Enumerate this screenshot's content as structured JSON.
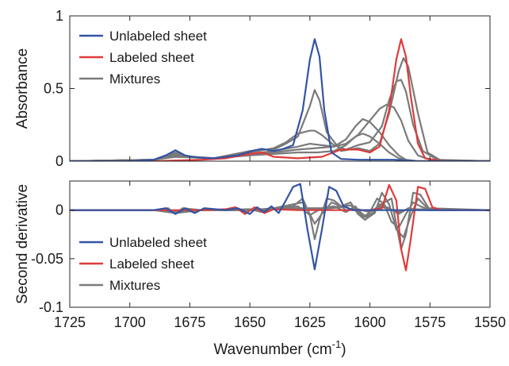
{
  "chart_data": [
    {
      "type": "line",
      "id": "top-panel",
      "xlabel": "",
      "ylabel": "Absorbance",
      "xlim": [
        1725,
        1550
      ],
      "ylim": [
        0,
        1
      ],
      "x_reversed": true,
      "xticks": [
        1725,
        1700,
        1675,
        1650,
        1625,
        1600,
        1575,
        1550
      ],
      "yticks": [
        0,
        0.5,
        1
      ],
      "ytick_labels": [
        "0",
        "0.5",
        "1"
      ],
      "legend": {
        "placement": "top-left",
        "entries": [
          {
            "label": "Unlabeled sheet",
            "color": "#3354a4"
          },
          {
            "label": "Labeled sheet",
            "color": "#e03a3a"
          },
          {
            "label": "Mixtures",
            "color": "#7a7a7a"
          }
        ]
      },
      "series": [
        {
          "name": "Unlabeled sheet",
          "color": "#3354a4",
          "x": [
            1725,
            1700,
            1690,
            1685,
            1681,
            1677,
            1672,
            1665,
            1655,
            1648,
            1645,
            1640,
            1636,
            1632,
            1628,
            1625,
            1623,
            1621,
            1619,
            1616,
            1612,
            1605,
            1598,
            1590,
            1580,
            1570,
            1550
          ],
          "y": [
            0,
            0,
            0.01,
            0.04,
            0.075,
            0.04,
            0.025,
            0.02,
            0.04,
            0.075,
            0.085,
            0.07,
            0.085,
            0.11,
            0.35,
            0.7,
            0.84,
            0.72,
            0.35,
            0.06,
            0.015,
            0.01,
            0.01,
            0.01,
            0,
            0,
            0
          ]
        },
        {
          "name": "Labeled sheet",
          "color": "#e03a3a",
          "x": [
            1725,
            1700,
            1690,
            1680,
            1670,
            1660,
            1650,
            1645,
            1640,
            1630,
            1620,
            1612,
            1605,
            1600,
            1596,
            1592,
            1589,
            1587,
            1585,
            1583,
            1580,
            1577,
            1570,
            1550
          ],
          "y": [
            0,
            0,
            0,
            0.005,
            0.01,
            0.02,
            0.05,
            0.06,
            0.03,
            0.02,
            0.03,
            0.08,
            0.08,
            0.06,
            0.1,
            0.35,
            0.7,
            0.84,
            0.72,
            0.45,
            0.12,
            0.02,
            0,
            0
          ]
        },
        {
          "name": "",
          "color": "#7a7a7a",
          "x": [
            1725,
            1690,
            1681,
            1675,
            1665,
            1650,
            1645,
            1640,
            1635,
            1630,
            1625,
            1623,
            1621,
            1618,
            1612,
            1605,
            1600,
            1596,
            1592,
            1588,
            1586,
            1584,
            1580,
            1576,
            1570,
            1550
          ],
          "y": [
            0,
            0.01,
            0.06,
            0.03,
            0.02,
            0.07,
            0.08,
            0.08,
            0.12,
            0.17,
            0.38,
            0.49,
            0.42,
            0.2,
            0.07,
            0.09,
            0.07,
            0.12,
            0.33,
            0.62,
            0.71,
            0.65,
            0.33,
            0.06,
            0,
            0
          ]
        },
        {
          "name": "",
          "color": "#7a7a7a",
          "x": [
            1725,
            1690,
            1681,
            1675,
            1665,
            1650,
            1640,
            1635,
            1630,
            1625,
            1623,
            1620,
            1615,
            1610,
            1605,
            1600,
            1595,
            1592,
            1589,
            1587,
            1585,
            1582,
            1578,
            1572,
            1550
          ],
          "y": [
            0,
            0.01,
            0.05,
            0.03,
            0.02,
            0.06,
            0.09,
            0.13,
            0.19,
            0.21,
            0.21,
            0.18,
            0.11,
            0.08,
            0.11,
            0.13,
            0.24,
            0.42,
            0.55,
            0.56,
            0.48,
            0.25,
            0.07,
            0.01,
            0
          ]
        },
        {
          "name": "",
          "color": "#7a7a7a",
          "x": [
            1725,
            1690,
            1681,
            1665,
            1650,
            1640,
            1630,
            1625,
            1620,
            1615,
            1610,
            1605,
            1600,
            1596,
            1593,
            1590,
            1587,
            1584,
            1580,
            1575,
            1550
          ],
          "y": [
            0,
            0.01,
            0.04,
            0.02,
            0.05,
            0.07,
            0.1,
            0.12,
            0.11,
            0.1,
            0.12,
            0.18,
            0.28,
            0.36,
            0.39,
            0.37,
            0.28,
            0.14,
            0.04,
            0.01,
            0
          ]
        },
        {
          "name": "",
          "color": "#7a7a7a",
          "x": [
            1725,
            1690,
            1681,
            1665,
            1650,
            1640,
            1630,
            1622,
            1615,
            1610,
            1606,
            1603,
            1600,
            1596,
            1592,
            1588,
            1585,
            1580,
            1550
          ],
          "y": [
            0,
            0.01,
            0.03,
            0.02,
            0.04,
            0.06,
            0.08,
            0.09,
            0.1,
            0.15,
            0.24,
            0.29,
            0.27,
            0.2,
            0.11,
            0.04,
            0.01,
            0,
            0
          ]
        },
        {
          "name": "",
          "color": "#7a7a7a",
          "x": [
            1725,
            1690,
            1681,
            1665,
            1650,
            1640,
            1630,
            1622,
            1615,
            1610,
            1606,
            1603,
            1600,
            1596,
            1592,
            1588,
            1583,
            1550
          ],
          "y": [
            0,
            0.01,
            0.03,
            0.02,
            0.04,
            0.05,
            0.06,
            0.06,
            0.07,
            0.11,
            0.17,
            0.19,
            0.17,
            0.12,
            0.06,
            0.02,
            0,
            0
          ]
        }
      ]
    },
    {
      "type": "line",
      "id": "bottom-panel",
      "xlabel": "Wavenumber (cm-1)",
      "xlabel_main": "Wavenumber (cm",
      "xlabel_sup": "-1",
      "xlabel_end": ")",
      "ylabel": "Second derivative",
      "xlim": [
        1725,
        1550
      ],
      "ylim": [
        -0.1,
        0.03
      ],
      "x_reversed": true,
      "xticks": [
        1725,
        1700,
        1675,
        1650,
        1625,
        1600,
        1575,
        1550
      ],
      "xtick_labels": [
        "1725",
        "1700",
        "1675",
        "1650",
        "1625",
        "1600",
        "1575",
        "1550"
      ],
      "yticks": [
        -0.1,
        -0.05,
        0
      ],
      "ytick_labels": [
        "-0.1",
        "-0.05",
        "0"
      ],
      "legend": {
        "placement": "bottom-left",
        "entries": [
          {
            "label": "Unlabeled sheet",
            "color": "#3354a4"
          },
          {
            "label": "Labeled sheet",
            "color": "#e03a3a"
          },
          {
            "label": "Mixtures",
            "color": "#7a7a7a"
          }
        ]
      },
      "series": [
        {
          "name": "Unlabeled sheet",
          "color": "#3354a4",
          "x": [
            1725,
            1690,
            1685,
            1681,
            1677,
            1673,
            1669,
            1660,
            1655,
            1650,
            1647,
            1644,
            1641,
            1638,
            1635,
            1632,
            1629,
            1626,
            1623,
            1620,
            1617,
            1614,
            1611,
            1607,
            1600,
            1590,
            1550
          ],
          "y": [
            0,
            0,
            0.002,
            -0.004,
            0.002,
            -0.003,
            0.002,
            0,
            0.002,
            -0.004,
            0.003,
            -0.002,
            0.004,
            -0.003,
            0.01,
            0.024,
            0.027,
            -0.02,
            -0.061,
            -0.02,
            0.024,
            0.02,
            0.004,
            0,
            0,
            0,
            0
          ]
        },
        {
          "name": "Labeled sheet",
          "color": "#e03a3a",
          "x": [
            1725,
            1690,
            1670,
            1660,
            1656,
            1652,
            1648,
            1644,
            1640,
            1630,
            1620,
            1610,
            1600,
            1595,
            1592,
            1589,
            1587,
            1585,
            1583,
            1580,
            1577,
            1574,
            1570,
            1550
          ],
          "y": [
            0,
            0,
            0,
            0.001,
            0.003,
            -0.004,
            0.003,
            -0.003,
            0.001,
            0,
            0,
            0,
            0,
            0.002,
            0.026,
            0.01,
            -0.04,
            -0.062,
            -0.03,
            0.024,
            0.022,
            0.003,
            0,
            0
          ]
        },
        {
          "name": "",
          "color": "#7a7a7a",
          "x": [
            1725,
            1690,
            1684,
            1681,
            1678,
            1670,
            1650,
            1645,
            1640,
            1632,
            1628,
            1625,
            1623,
            1621,
            1618,
            1615,
            1610,
            1605,
            1600,
            1594,
            1591,
            1589,
            1587,
            1585,
            1582,
            1579,
            1575,
            1550
          ],
          "y": [
            0,
            0,
            0.002,
            -0.004,
            0.002,
            0,
            0.001,
            -0.002,
            0.002,
            0.004,
            0.012,
            -0.005,
            -0.03,
            -0.01,
            0.012,
            0.01,
            0,
            0.001,
            -0.002,
            0.008,
            0.012,
            -0.015,
            -0.04,
            -0.025,
            0.018,
            0.016,
            0,
            0
          ]
        },
        {
          "name": "",
          "color": "#7a7a7a",
          "x": [
            1725,
            1690,
            1681,
            1670,
            1650,
            1640,
            1632,
            1628,
            1625,
            1623,
            1620,
            1616,
            1612,
            1608,
            1604,
            1601,
            1598,
            1595,
            1592,
            1589,
            1586,
            1583,
            1580,
            1576,
            1550
          ],
          "y": [
            0,
            0,
            -0.003,
            0,
            0,
            0.002,
            0.006,
            0.008,
            -0.004,
            -0.014,
            -0.004,
            0.008,
            0.004,
            0.005,
            -0.002,
            -0.008,
            -0.003,
            0.018,
            0.006,
            -0.02,
            -0.028,
            -0.006,
            0.012,
            0.002,
            0
          ]
        },
        {
          "name": "",
          "color": "#7a7a7a",
          "x": [
            1725,
            1690,
            1681,
            1670,
            1650,
            1640,
            1630,
            1625,
            1620,
            1615,
            1610,
            1606,
            1603,
            1600,
            1597,
            1594,
            1591,
            1588,
            1585,
            1582,
            1579,
            1575,
            1550
          ],
          "y": [
            0,
            0,
            -0.002,
            0,
            0,
            0.001,
            0.004,
            -0.005,
            0.002,
            0.004,
            -0.002,
            0.004,
            -0.008,
            -0.002,
            0.012,
            0.006,
            -0.012,
            -0.018,
            -0.004,
            0.008,
            0.004,
            0,
            0
          ]
        },
        {
          "name": "",
          "color": "#7a7a7a",
          "x": [
            1725,
            1690,
            1681,
            1670,
            1650,
            1640,
            1630,
            1620,
            1612,
            1608,
            1605,
            1602,
            1599,
            1596,
            1592,
            1588,
            1584,
            1580,
            1550
          ],
          "y": [
            0,
            0,
            -0.001,
            0,
            0,
            0.001,
            0.002,
            0.002,
            0.004,
            0.008,
            -0.004,
            -0.01,
            -0.004,
            0.006,
            0.002,
            -0.004,
            0.002,
            0,
            0
          ]
        },
        {
          "name": "",
          "color": "#7a7a7a",
          "x": [
            1725,
            1690,
            1681,
            1670,
            1650,
            1635,
            1620,
            1612,
            1608,
            1605,
            1602,
            1599,
            1596,
            1592,
            1588,
            1584,
            1550
          ],
          "y": [
            0,
            0,
            -0.001,
            0,
            0,
            0.001,
            0.001,
            0.003,
            0.005,
            -0.002,
            -0.007,
            -0.003,
            0.004,
            0.001,
            -0.002,
            0.001,
            0
          ]
        }
      ]
    }
  ]
}
